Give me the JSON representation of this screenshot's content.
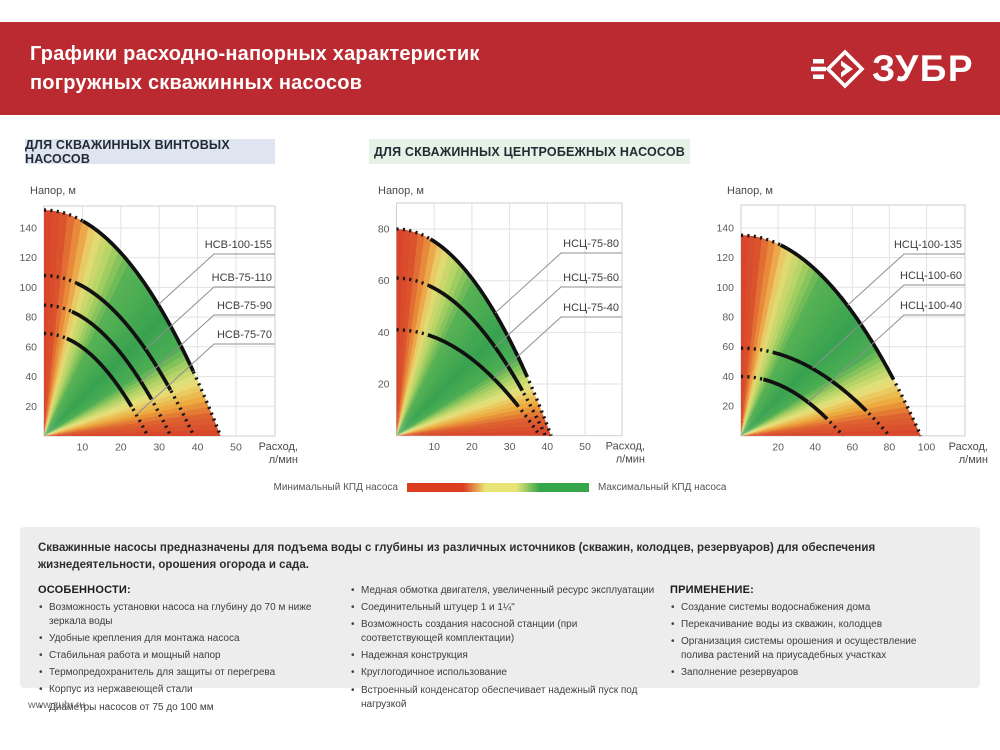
{
  "header": {
    "title_line1": "Графики расходно-напорных характеристик",
    "title_line2": "погружных скважинных насосов",
    "logo_text": "ЗУБР",
    "brand_red": "#ba2a30"
  },
  "sections": [
    {
      "label": "ДЛЯ СКВАЖИННЫХ ВИНТОВЫХ НАСОСОВ"
    },
    {
      "label": "ДЛЯ СКВАЖИННЫХ ЦЕНТРОБЕЖНЫХ НАСОСОВ"
    }
  ],
  "chart_data": [
    {
      "type": "line",
      "group": "винтовые насосы",
      "ylabel": "Напор, м",
      "xlabel_line1": "Расход,",
      "xlabel_line2": "л/мин",
      "x_ticks": [
        10,
        20,
        30,
        40,
        50
      ],
      "y_ticks": [
        20,
        40,
        60,
        80,
        100,
        120,
        140
      ],
      "xlim": [
        0,
        60
      ],
      "ylim": [
        0,
        155
      ],
      "grid": true,
      "series": [
        {
          "name": "НСВ-100-155",
          "max_head_m": 152,
          "max_flow_l_min": 46
        },
        {
          "name": "НСВ-75-110",
          "max_head_m": 108,
          "max_flow_l_min": 39
        },
        {
          "name": "НСВ-75-90",
          "max_head_m": 88,
          "max_flow_l_min": 33
        },
        {
          "name": "НСВ-75-70",
          "max_head_m": 69,
          "max_flow_l_min": 27
        }
      ]
    },
    {
      "type": "line",
      "group": "центробежные насосы 75 мм",
      "ylabel": "Напор, м",
      "xlabel_line1": "Расход,",
      "xlabel_line2": "л/мин",
      "x_ticks": [
        10,
        20,
        30,
        40,
        50
      ],
      "y_ticks": [
        20,
        40,
        60,
        80
      ],
      "xlim": [
        0,
        60
      ],
      "ylim": [
        0,
        90
      ],
      "grid": true,
      "series": [
        {
          "name": "НСЦ-75-80",
          "max_head_m": 80,
          "max_flow_l_min": 41
        },
        {
          "name": "НСЦ-75-60",
          "max_head_m": 61,
          "max_flow_l_min": 39.5
        },
        {
          "name": "НСЦ-75-40",
          "max_head_m": 41,
          "max_flow_l_min": 38
        }
      ]
    },
    {
      "type": "line",
      "group": "центробежные насосы 100 мм",
      "ylabel": "Напор, м",
      "xlabel_line1": "Расход,",
      "xlabel_line2": "л/мин",
      "x_ticks": [
        20,
        40,
        60,
        80,
        100
      ],
      "y_ticks": [
        20,
        40,
        60,
        80,
        100,
        120,
        140
      ],
      "xlim": [
        0,
        120
      ],
      "ylim": [
        0,
        155
      ],
      "grid": true,
      "series": [
        {
          "name": "НСЦ-100-135",
          "max_head_m": 135,
          "max_flow_l_min": 97
        },
        {
          "name": "НСЦ-100-60",
          "max_head_m": 59,
          "max_flow_l_min": 80
        },
        {
          "name": "НСЦ-100-40",
          "max_head_m": 40,
          "max_flow_l_min": 55
        }
      ]
    }
  ],
  "legend": {
    "min_label": "Минимальный КПД насоса",
    "max_label": "Максимальный КПД насоса",
    "efficiency_colors": {
      "min": "#dc3d20",
      "mid": "#e9e476",
      "max": "#35a74a"
    }
  },
  "info": {
    "intro": "Скважинные насосы предназначены для подъема воды с глубины из различных источников (скважин, колодцев, резервуаров) для обеспечения жизнедеятельности, орошения огорода и сада.",
    "features_title": "ОСОБЕННОСТИ:",
    "features_col1": [
      "Возможность установки насоса на глубину до 70 м ниже зеркала воды",
      "Удобные крепления для монтажа насоса",
      "Стабильная работа и мощный напор",
      "Термопредохранитель для защиты от перегрева",
      "Корпус из нержавеющей стали",
      "Диаметры насосов от 75 до 100 мм"
    ],
    "features_col2": [
      "Медная обмотка двигателя, увеличенный ресурс эксплуатации",
      "Соединительный штуцер 1 и 1¼\"",
      "Возможность создания насосной станции (при соответствующей комплектации)",
      "Надежная конструкция",
      "Круглогодичное использование",
      "Встроенный конденсатор обеспечивает надежный пуск под нагрузкой"
    ],
    "application_title": "ПРИМЕНЕНИЕ:",
    "application": [
      "Создание системы водоснабжения дома",
      "Перекачивание воды из скважин, колодцев",
      "Организация системы орошения и осуществление полива растений на приусадебных участках",
      "Заполнение резервуаров"
    ]
  },
  "footer": {
    "url": "www.zubr.ru"
  }
}
